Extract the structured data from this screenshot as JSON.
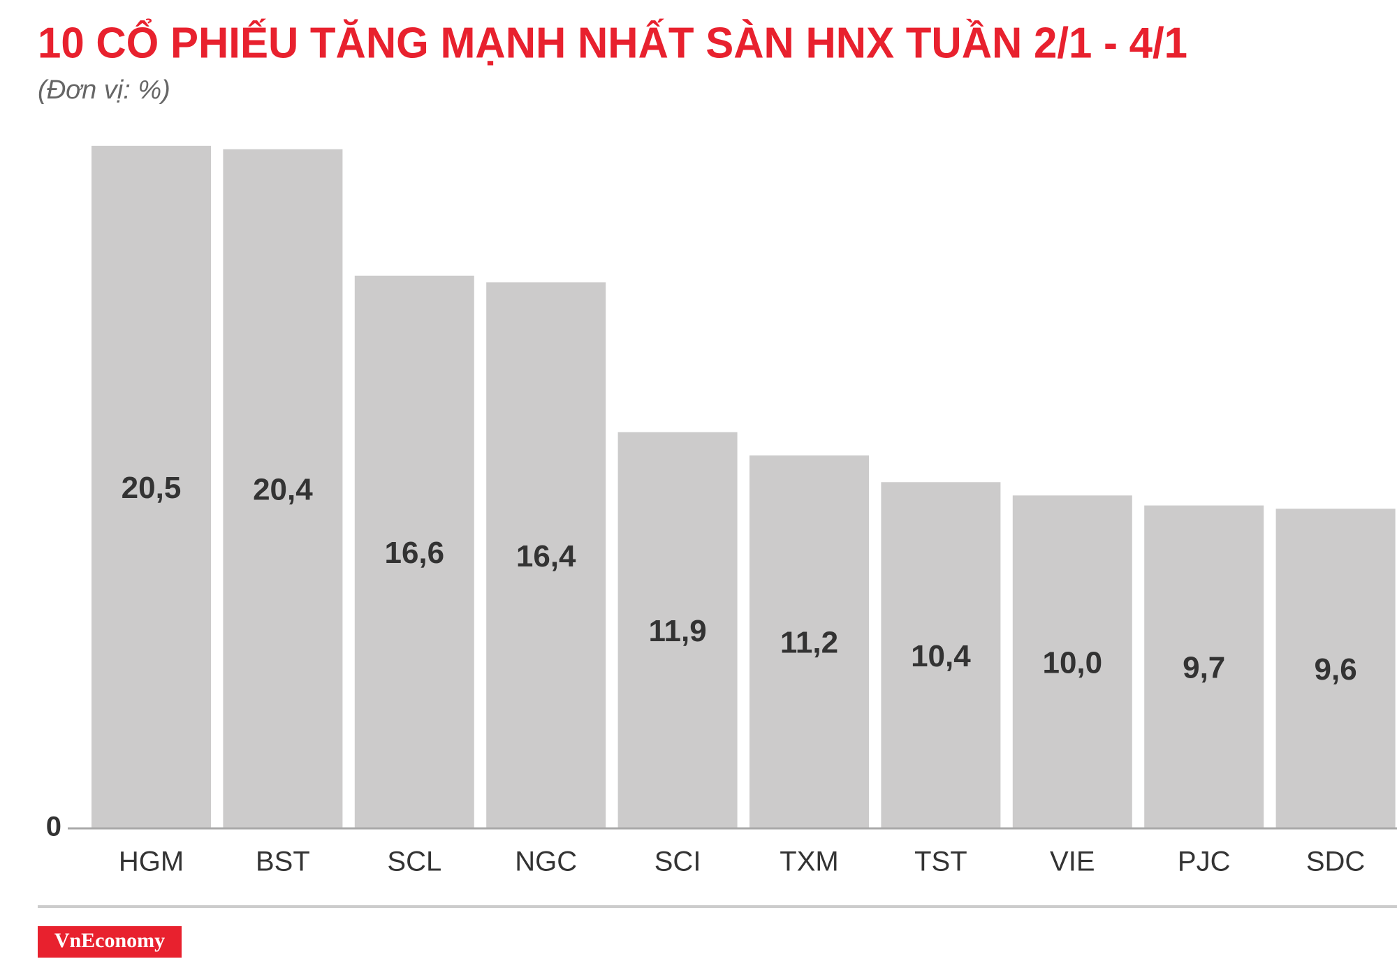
{
  "chart_data": {
    "type": "bar",
    "title": "10 CỔ PHIẾU TĂNG MẠNH NHẤT SÀN HNX TUẦN 2/1 - 4/1",
    "subtitle": "(Đơn vị: %)",
    "categories": [
      "HGM",
      "BST",
      "SCL",
      "NGC",
      "SCI",
      "TXM",
      "TST",
      "VIE",
      "PJC",
      "SDC"
    ],
    "values": [
      20.5,
      20.4,
      16.6,
      16.4,
      11.9,
      11.2,
      10.4,
      10.0,
      9.7,
      9.6
    ],
    "value_labels": [
      "20,5",
      "20,4",
      "16,6",
      "16,4",
      "11,9",
      "11,2",
      "10,4",
      "10,0",
      "9,7",
      "9,6"
    ],
    "color": "#cccbcb",
    "ylim": [
      0,
      21
    ],
    "yticks": [
      0
    ],
    "logo": "VnEconomy"
  }
}
